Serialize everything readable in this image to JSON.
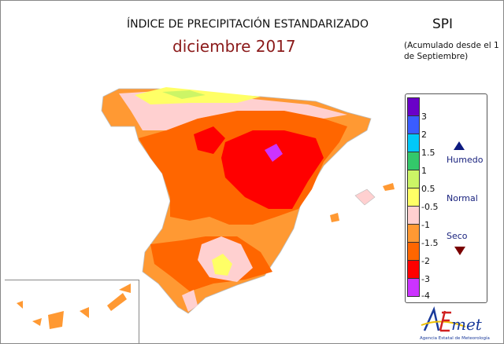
{
  "header": {
    "title": "ÍNDICE DE PRECIPITACIÓN ESTANDARIZADO",
    "period": "diciembre 2017",
    "index": "SPI",
    "accumulation_note": "(Acumulado desde el 1 de Septiembre)"
  },
  "legend": {
    "bins": [
      {
        "color": "#6a00c8",
        "label": "3"
      },
      {
        "color": "#3a5cff",
        "label": "2"
      },
      {
        "color": "#00c8f8",
        "label": "1.5"
      },
      {
        "color": "#33c86a",
        "label": "1"
      },
      {
        "color": "#ccf566",
        "label": "0.5"
      },
      {
        "color": "#ffff66",
        "label": "-0.5"
      },
      {
        "color": "#ffd0d0",
        "label": "-1"
      },
      {
        "color": "#ff9933",
        "label": "-1.5"
      },
      {
        "color": "#ff6600",
        "label": "-2"
      },
      {
        "color": "#ff0000",
        "label": "-3"
      },
      {
        "color": "#cc33ff",
        "label": "-4"
      }
    ],
    "categories": {
      "wet": "Humedo",
      "normal": "Normal",
      "dry": "Seco"
    }
  },
  "logo": {
    "name": "AEMet",
    "subtitle": "Agencia Estatal de Meteorología"
  }
}
